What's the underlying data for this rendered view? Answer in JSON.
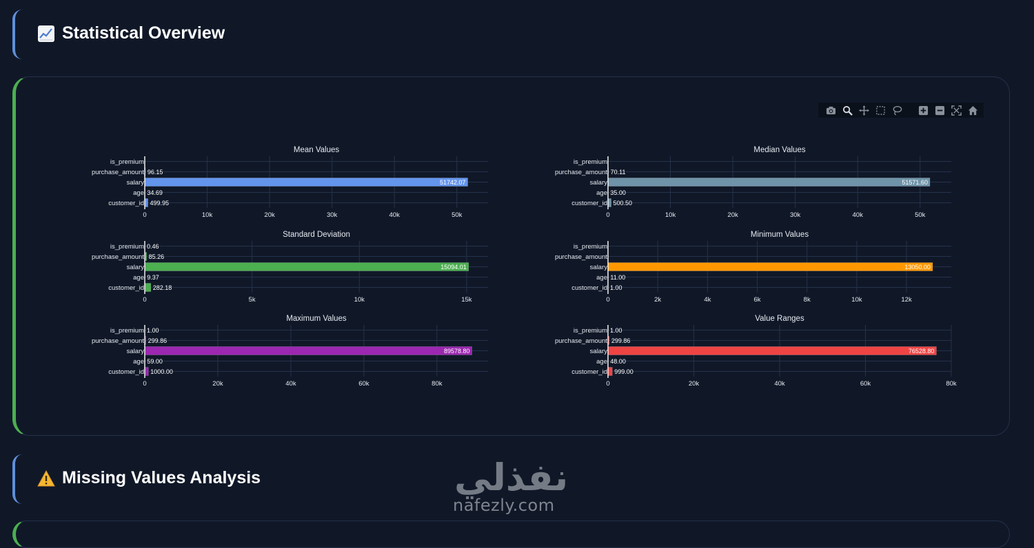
{
  "sections": {
    "stats_title": "Statistical Overview",
    "missing_title": "Missing Values Analysis"
  },
  "modebar": {
    "buttons": [
      "camera-icon",
      "zoom-icon",
      "pan-icon",
      "box-select-icon",
      "lasso-icon",
      "zoom-in-icon",
      "zoom-out-icon",
      "autoscale-icon",
      "home-icon"
    ]
  },
  "watermark": {
    "text_ar": "نفذلي",
    "text_latin": "nafezly.com"
  },
  "colors": {
    "background": "#101828",
    "stats_accent": "#5f8fd9",
    "card_accent": "#4caf50",
    "mean": "#6495ed",
    "median": "#6f93a8",
    "std": "#4caf50",
    "min": "#ff9800",
    "max": "#9c27b0",
    "range": "#ef4444"
  },
  "chart_data": [
    {
      "type": "bar",
      "orientation": "horizontal",
      "title": "Mean Values",
      "categories": [
        "customer_id",
        "age",
        "salary",
        "purchase_amount",
        "is_premium"
      ],
      "values": [
        499.95,
        34.69,
        51742.07,
        96.15,
        0.31
      ],
      "labels": [
        "499.95",
        "34.69",
        "51742.07",
        "96.15",
        ""
      ],
      "color": "#6495ed",
      "xticks": [
        0,
        10000,
        20000,
        30000,
        40000,
        50000
      ],
      "xtick_labels": [
        "0",
        "10k",
        "20k",
        "30k",
        "40k",
        "50k"
      ],
      "xlim": [
        0,
        55000
      ]
    },
    {
      "type": "bar",
      "orientation": "horizontal",
      "title": "Median Values",
      "categories": [
        "customer_id",
        "age",
        "salary",
        "purchase_amount",
        "is_premium"
      ],
      "values": [
        500.5,
        35.0,
        51571.6,
        70.11,
        0
      ],
      "labels": [
        "500.50",
        "35.00",
        "51571.60",
        "70.11",
        ""
      ],
      "color": "#6f93a8",
      "xticks": [
        0,
        10000,
        20000,
        30000,
        40000,
        50000
      ],
      "xtick_labels": [
        "0",
        "10k",
        "20k",
        "30k",
        "40k",
        "50k"
      ],
      "xlim": [
        0,
        55000
      ]
    },
    {
      "type": "bar",
      "orientation": "horizontal",
      "title": "Standard Deviation",
      "categories": [
        "customer_id",
        "age",
        "salary",
        "purchase_amount",
        "is_premium"
      ],
      "values": [
        282.18,
        9.37,
        15094.01,
        85.26,
        0.46
      ],
      "labels": [
        "282.18",
        "9.37",
        "15094.01",
        "85.26",
        "0.46"
      ],
      "color": "#4caf50",
      "xticks": [
        0,
        5000,
        10000,
        15000
      ],
      "xtick_labels": [
        "0",
        "5k",
        "10k",
        "15k"
      ],
      "xlim": [
        0,
        16000
      ]
    },
    {
      "type": "bar",
      "orientation": "horizontal",
      "title": "Minimum Values",
      "categories": [
        "customer_id",
        "age",
        "salary",
        "purchase_amount",
        "is_premium"
      ],
      "values": [
        1.0,
        11.0,
        13050.0,
        0,
        0
      ],
      "labels": [
        "1.00",
        "11.00",
        "13050.00",
        "",
        ""
      ],
      "color": "#ff9800",
      "xticks": [
        0,
        2000,
        4000,
        6000,
        8000,
        10000,
        12000
      ],
      "xtick_labels": [
        "0",
        "2k",
        "4k",
        "6k",
        "8k",
        "10k",
        "12k"
      ],
      "xlim": [
        0,
        13800
      ]
    },
    {
      "type": "bar",
      "orientation": "horizontal",
      "title": "Maximum Values",
      "categories": [
        "customer_id",
        "age",
        "salary",
        "purchase_amount",
        "is_premium"
      ],
      "values": [
        1000.0,
        59.0,
        89578.8,
        299.86,
        1.0
      ],
      "labels": [
        "1000.00",
        "59.00",
        "89578.80",
        "299.86",
        "1.00"
      ],
      "color": "#9c27b0",
      "xticks": [
        0,
        20000,
        40000,
        60000,
        80000
      ],
      "xtick_labels": [
        "0",
        "20k",
        "40k",
        "60k",
        "80k"
      ],
      "xlim": [
        0,
        94000
      ]
    },
    {
      "type": "bar",
      "orientation": "horizontal",
      "title": "Value Ranges",
      "categories": [
        "customer_id",
        "age",
        "salary",
        "purchase_amount",
        "is_premium"
      ],
      "values": [
        999.0,
        48.0,
        76528.8,
        299.86,
        1.0
      ],
      "labels": [
        "999.00",
        "48.00",
        "76528.80",
        "299.86",
        "1.00"
      ],
      "color": "#ef4444",
      "xticks": [
        0,
        20000,
        40000,
        60000,
        80000
      ],
      "xtick_labels": [
        "0",
        "20k",
        "40k",
        "60k",
        "80k"
      ],
      "xlim": [
        0,
        80000
      ]
    }
  ]
}
